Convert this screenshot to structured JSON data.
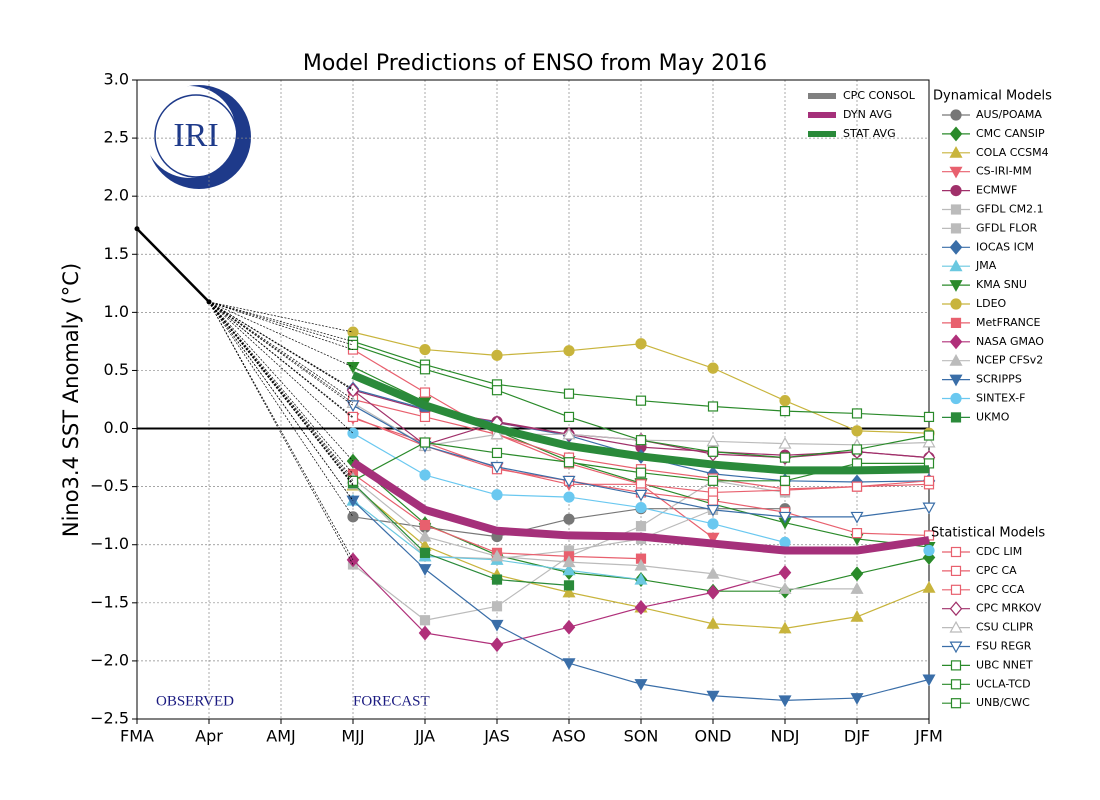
{
  "chart_data": {
    "type": "line",
    "title": "Model Predictions of ENSO from May 2016",
    "ylabel": "Nino3.4 SST Anomaly (°C)",
    "logo": "IRI",
    "annotations": [
      "OBSERVED",
      "FORECAST"
    ],
    "categories": [
      "FMA",
      "Apr",
      "AMJ",
      "MJJ",
      "JJA",
      "JAS",
      "ASO",
      "SON",
      "OND",
      "NDJ",
      "DJF",
      "JFM"
    ],
    "ylim": [
      -2.5,
      3.0
    ],
    "yticks": [
      {
        "value": -2.5,
        "label": "−2.5"
      },
      {
        "value": -2.0,
        "label": "−2.0"
      },
      {
        "value": -1.5,
        "label": "−1.5"
      },
      {
        "value": -1.0,
        "label": "−1.0"
      },
      {
        "value": -0.5,
        "label": "−0.5"
      },
      {
        "value": 0,
        "label": "0.0"
      },
      {
        "value": 0.5,
        "label": "0.5"
      },
      {
        "value": 1.0,
        "label": "1.0"
      },
      {
        "value": 1.5,
        "label": "1.5"
      },
      {
        "value": 2.0,
        "label": "2.0"
      },
      {
        "value": 2.5,
        "label": "2.5"
      },
      {
        "value": 3.0,
        "label": "3.0"
      }
    ],
    "grid": true,
    "observed": {
      "color": "#000000",
      "values": [
        1.72,
        1.09,
        null,
        null,
        null,
        null,
        null,
        null,
        null,
        null,
        null,
        null
      ]
    },
    "series": [
      {
        "name": "CPC CONSOL",
        "color": "#808080",
        "values": [
          null,
          null,
          null,
          null,
          null,
          null,
          null,
          null,
          null,
          null,
          null,
          null
        ]
      },
      {
        "name": "DYN AVG",
        "color": "#a5307a",
        "values": [
          null,
          null,
          null,
          -0.29,
          -0.7,
          -0.88,
          -0.92,
          -0.93,
          -0.99,
          -1.05,
          -1.05,
          -0.96
        ]
      },
      {
        "name": "STAT AVG",
        "color": "#2a8a3a",
        "values": [
          null,
          null,
          null,
          0.46,
          0.2,
          0.0,
          -0.15,
          -0.24,
          -0.31,
          -0.36,
          -0.36,
          -0.35
        ]
      }
    ],
    "groups": [
      {
        "title": "Dynamical Models",
        "series": [
          {
            "name": "AUS/POAMA",
            "color": "#777777",
            "marker": "o",
            "filled": true,
            "values": [
              null,
              null,
              null,
              -0.76,
              -0.85,
              -0.93,
              -0.78,
              -0.69,
              -0.69,
              -0.69,
              null,
              null
            ]
          },
          {
            "name": "CMC CANSIP",
            "color": "#2a8a2a",
            "marker": "D",
            "filled": true,
            "values": [
              null,
              null,
              null,
              -0.28,
              -0.82,
              -1.09,
              -1.24,
              -1.3,
              -1.4,
              -1.4,
              -1.25,
              -1.11
            ]
          },
          {
            "name": "COLA CCSM4",
            "color": "#c8b43c",
            "marker": "^",
            "filled": true,
            "values": [
              null,
              null,
              null,
              -0.49,
              -1.01,
              -1.26,
              -1.41,
              -1.54,
              -1.68,
              -1.72,
              -1.62,
              -1.37
            ]
          },
          {
            "name": "CS-IRI-MM",
            "color": "#e8606e",
            "marker": "v",
            "filled": true,
            "values": [
              null,
              null,
              null,
              0.09,
              -0.12,
              -0.34,
              -0.48,
              -0.48,
              -0.94,
              null,
              null,
              null
            ]
          },
          {
            "name": "ECMWF",
            "color": "#a0306a",
            "marker": "o",
            "filled": true,
            "values": [
              null,
              null,
              null,
              0.33,
              0.16,
              0.06,
              -0.05,
              -0.16,
              -0.2,
              -0.23,
              -0.2,
              -0.25
            ]
          },
          {
            "name": "GFDL CM2.1",
            "color": "#bbbbbb",
            "marker": "s",
            "filled": true,
            "values": [
              null,
              null,
              null,
              -1.17,
              -1.65,
              -1.53,
              -1.1,
              -0.84,
              -0.45,
              -0.55,
              null,
              null
            ]
          },
          {
            "name": "GFDL FLOR",
            "color": "#bbbbbb",
            "marker": "s",
            "filled": true,
            "values": [
              null,
              null,
              null,
              -0.48,
              -1.1,
              -1.12,
              -1.05,
              -0.95,
              -0.7,
              null,
              null,
              null
            ]
          },
          {
            "name": "IOCAS ICM",
            "color": "#3a6ea8",
            "marker": "D",
            "filled": true,
            "values": [
              null,
              null,
              null,
              0.34,
              0.17,
              0.05,
              -0.06,
              -0.24,
              -0.39,
              -0.45,
              -0.46,
              -0.45
            ]
          },
          {
            "name": "JMA",
            "color": "#6ac8e0",
            "marker": "^",
            "filled": true,
            "values": [
              null,
              null,
              null,
              -0.62,
              -1.1,
              -1.13,
              -1.22,
              -1.3,
              null,
              null,
              null,
              null
            ]
          },
          {
            "name": "KMA SNU",
            "color": "#2a8a2a",
            "marker": "v",
            "filled": true,
            "values": [
              null,
              null,
              null,
              0.53,
              0.23,
              -0.02,
              -0.28,
              -0.47,
              -0.65,
              -0.81,
              -0.95,
              -1.02
            ]
          },
          {
            "name": "LDEO",
            "color": "#c8b43c",
            "marker": "o",
            "filled": true,
            "values": [
              null,
              null,
              null,
              0.83,
              0.68,
              0.63,
              0.67,
              0.73,
              0.52,
              0.24,
              -0.02,
              -0.04
            ]
          },
          {
            "name": "MetFRANCE",
            "color": "#e8606e",
            "marker": "s",
            "filled": true,
            "values": [
              null,
              null,
              null,
              -0.39,
              -0.83,
              -1.07,
              -1.1,
              -1.12,
              null,
              null,
              null,
              null
            ]
          },
          {
            "name": "NASA GMAO",
            "color": "#b0307a",
            "marker": "D",
            "filled": true,
            "values": [
              null,
              null,
              null,
              -1.13,
              -1.76,
              -1.86,
              -1.71,
              -1.54,
              -1.41,
              -1.24,
              null,
              null
            ]
          },
          {
            "name": "NCEP CFSv2",
            "color": "#bbbbbb",
            "marker": "^",
            "filled": true,
            "values": [
              null,
              null,
              null,
              -0.43,
              -0.93,
              -1.1,
              -1.15,
              -1.18,
              -1.25,
              -1.38,
              -1.38,
              null
            ]
          },
          {
            "name": "SCRIPPS",
            "color": "#3a6ea8",
            "marker": "v",
            "filled": true,
            "values": [
              null,
              null,
              null,
              -0.62,
              -1.21,
              -1.69,
              -2.02,
              -2.2,
              -2.3,
              -2.34,
              -2.32,
              -2.16
            ]
          },
          {
            "name": "SINTEX-F",
            "color": "#6ac8f0",
            "marker": "o",
            "filled": true,
            "values": [
              null,
              null,
              null,
              -0.04,
              -0.4,
              -0.57,
              -0.59,
              -0.68,
              -0.82,
              -0.98,
              null,
              -1.05
            ]
          },
          {
            "name": "UKMO",
            "color": "#2a8a3a",
            "marker": "s",
            "filled": true,
            "values": [
              null,
              null,
              null,
              -0.47,
              -1.07,
              -1.3,
              -1.35,
              null,
              null,
              null,
              null,
              null
            ]
          }
        ]
      },
      {
        "title": "Statistical Models",
        "series": [
          {
            "name": "CDC LIM",
            "color": "#e8606e",
            "marker": "s",
            "filled": false,
            "values": [
              null,
              null,
              null,
              0.68,
              0.31,
              -0.05,
              -0.25,
              -0.35,
              -0.43,
              -0.52,
              -0.5,
              -0.48
            ]
          },
          {
            "name": "CPC CA",
            "color": "#e8606e",
            "marker": "s",
            "filled": false,
            "values": [
              null,
              null,
              null,
              0.25,
              0.1,
              -0.05,
              -0.3,
              -0.48,
              -0.55,
              -0.53,
              -0.5,
              -0.45
            ]
          },
          {
            "name": "CPC CCA",
            "color": "#e8606e",
            "marker": "s",
            "filled": false,
            "values": [
              null,
              null,
              null,
              0.1,
              -0.15,
              -0.35,
              -0.45,
              -0.55,
              -0.62,
              -0.72,
              -0.9,
              -0.92
            ]
          },
          {
            "name": "CPC MRKOV",
            "color": "#a0306a",
            "marker": "D",
            "filled": false,
            "values": [
              null,
              null,
              null,
              0.33,
              -0.14,
              0.05,
              -0.05,
              -0.1,
              -0.22,
              -0.25,
              -0.2,
              -0.25
            ]
          },
          {
            "name": "CSU CLIPR",
            "color": "#bbbbbb",
            "marker": "^",
            "filled": false,
            "values": [
              null,
              null,
              null,
              0.22,
              -0.15,
              -0.05,
              -0.05,
              -0.1,
              -0.11,
              -0.13,
              -0.14,
              -0.12
            ]
          },
          {
            "name": "FSU REGR",
            "color": "#3a6ea8",
            "marker": "v",
            "filled": false,
            "values": [
              null,
              null,
              null,
              0.2,
              -0.15,
              -0.33,
              -0.45,
              -0.57,
              -0.7,
              -0.76,
              -0.76,
              -0.68
            ]
          },
          {
            "name": "UBC NNET",
            "color": "#2a8a2a",
            "marker": "s",
            "filled": false,
            "values": [
              null,
              null,
              null,
              -0.45,
              -0.12,
              -0.21,
              -0.29,
              -0.38,
              -0.45,
              -0.45,
              -0.3,
              -0.3
            ]
          },
          {
            "name": "UCLA-TCD",
            "color": "#2a8a2a",
            "marker": "s",
            "filled": false,
            "values": [
              null,
              null,
              null,
              0.75,
              0.55,
              0.38,
              0.3,
              0.24,
              0.19,
              0.15,
              0.13,
              0.1
            ]
          },
          {
            "name": "UNB/CWC",
            "color": "#2a8a2a",
            "marker": "s",
            "filled": false,
            "values": [
              null,
              null,
              null,
              0.72,
              0.51,
              0.33,
              0.1,
              -0.1,
              -0.2,
              -0.25,
              -0.18,
              -0.06
            ]
          }
        ]
      }
    ]
  }
}
